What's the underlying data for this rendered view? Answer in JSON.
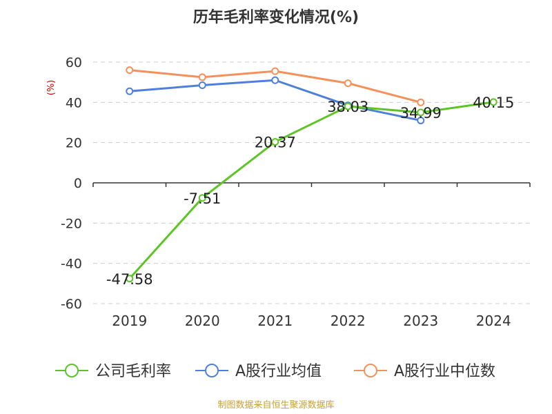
{
  "chart_data": {
    "type": "line",
    "title": "历年毛利率变化情况(%)",
    "ylabel": "(%)",
    "xlabel": "",
    "categories": [
      "2019",
      "2020",
      "2021",
      "2022",
      "2023",
      "2024"
    ],
    "ylim": [
      -60,
      60
    ],
    "yticks": [
      60,
      40,
      20,
      0,
      -20,
      -40,
      -60
    ],
    "grid": true,
    "legend_position": "bottom",
    "series": [
      {
        "name": "公司毛利率",
        "color": "#5cc524",
        "values": [
          -47.58,
          -7.51,
          20.37,
          38.03,
          34.99,
          40.15
        ],
        "labels": [
          "-47.58",
          "-7.51",
          "20.37",
          "38.03",
          "34.99",
          "40.15"
        ]
      },
      {
        "name": "A股行业均值",
        "color": "#4f7fdc",
        "values": [
          45.5,
          48.5,
          51,
          38.5,
          31,
          null
        ]
      },
      {
        "name": "A股行业中位数",
        "color": "#f5905a",
        "values": [
          56,
          52.5,
          55.5,
          49.5,
          40,
          null
        ]
      }
    ],
    "source": "制图数据来自恒生聚源数据库"
  }
}
